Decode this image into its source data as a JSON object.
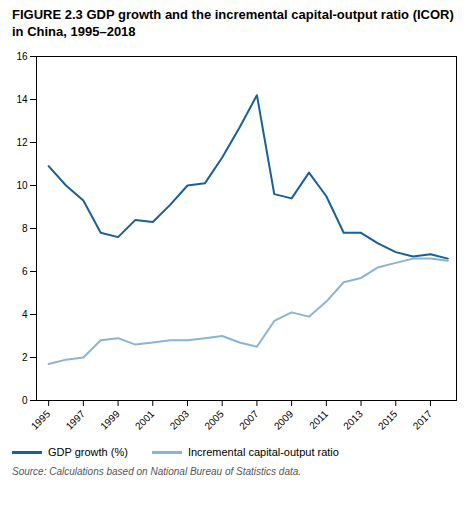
{
  "chart_data": {
    "type": "line",
    "title": "FIGURE 2.3 GDP growth and the incremental capital-output ratio (ICOR) in China, 1995–2018",
    "caption": "Source: Calculations based on National Bureau of Statistics data.",
    "x": [
      1995,
      1996,
      1997,
      1998,
      1999,
      2000,
      2001,
      2002,
      2003,
      2004,
      2005,
      2006,
      2007,
      2008,
      2009,
      2010,
      2011,
      2012,
      2013,
      2014,
      2015,
      2016,
      2017,
      2018
    ],
    "series": [
      {
        "name": "GDP growth (%)",
        "color": "#1a5f96",
        "values": [
          10.9,
          10.0,
          9.3,
          7.8,
          7.6,
          8.4,
          8.3,
          9.1,
          10.0,
          10.1,
          11.3,
          12.7,
          14.2,
          9.6,
          9.4,
          10.6,
          9.5,
          7.8,
          7.8,
          7.3,
          6.9,
          6.7,
          6.8,
          6.6
        ]
      },
      {
        "name": "Incremental capital-output ratio",
        "color": "#8ab4d4",
        "values": [
          1.7,
          1.9,
          2.0,
          2.8,
          2.9,
          2.6,
          2.7,
          2.8,
          2.8,
          2.9,
          3.0,
          2.7,
          2.5,
          3.7,
          4.1,
          3.9,
          4.6,
          5.5,
          5.7,
          6.2,
          6.4,
          6.6,
          6.6,
          6.5
        ]
      }
    ],
    "xlim": [
      1994.3,
      2018.5
    ],
    "xticks": [
      1995,
      1997,
      1999,
      2001,
      2003,
      2005,
      2007,
      2009,
      2011,
      2013,
      2015,
      2017
    ],
    "ylim": [
      0,
      16
    ],
    "yticks": [
      0,
      2,
      4,
      6,
      8,
      10,
      12,
      14,
      16
    ],
    "grid": false,
    "legend": "bottom"
  }
}
